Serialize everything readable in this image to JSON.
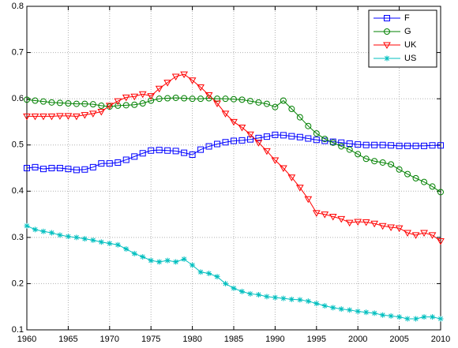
{
  "chart_data": {
    "type": "line",
    "x": [
      1960,
      1961,
      1962,
      1963,
      1964,
      1965,
      1966,
      1967,
      1968,
      1969,
      1970,
      1971,
      1972,
      1973,
      1974,
      1975,
      1976,
      1977,
      1978,
      1979,
      1980,
      1981,
      1982,
      1983,
      1984,
      1985,
      1986,
      1987,
      1988,
      1989,
      1990,
      1991,
      1992,
      1993,
      1994,
      1995,
      1996,
      1997,
      1998,
      1999,
      2000,
      2001,
      2002,
      2003,
      2004,
      2005,
      2006,
      2007,
      2008,
      2009,
      2010
    ],
    "series": [
      {
        "name": "F",
        "color": "#0000ff",
        "marker": "square",
        "values": [
          0.45,
          0.452,
          0.448,
          0.45,
          0.45,
          0.448,
          0.446,
          0.447,
          0.452,
          0.46,
          0.46,
          0.462,
          0.468,
          0.475,
          0.482,
          0.488,
          0.489,
          0.488,
          0.487,
          0.483,
          0.479,
          0.49,
          0.497,
          0.502,
          0.506,
          0.509,
          0.51,
          0.512,
          0.515,
          0.518,
          0.522,
          0.521,
          0.519,
          0.517,
          0.514,
          0.511,
          0.509,
          0.507,
          0.505,
          0.503,
          0.501,
          0.5,
          0.5,
          0.5,
          0.499,
          0.498,
          0.498,
          0.498,
          0.498,
          0.499,
          0.499
        ]
      },
      {
        "name": "G",
        "color": "#008000",
        "marker": "circle",
        "values": [
          0.598,
          0.596,
          0.594,
          0.592,
          0.591,
          0.59,
          0.589,
          0.589,
          0.588,
          0.585,
          0.583,
          0.585,
          0.586,
          0.587,
          0.59,
          0.596,
          0.6,
          0.601,
          0.602,
          0.601,
          0.6,
          0.6,
          0.601,
          0.6,
          0.6,
          0.599,
          0.598,
          0.595,
          0.592,
          0.589,
          0.582,
          0.596,
          0.578,
          0.56,
          0.541,
          0.525,
          0.513,
          0.505,
          0.497,
          0.49,
          0.48,
          0.47,
          0.465,
          0.462,
          0.458,
          0.447,
          0.437,
          0.428,
          0.42,
          0.41,
          0.398
        ]
      },
      {
        "name": "UK",
        "color": "#ff0000",
        "marker": "triangle-down",
        "values": [
          0.562,
          0.562,
          0.562,
          0.562,
          0.563,
          0.563,
          0.562,
          0.565,
          0.568,
          0.572,
          0.585,
          0.595,
          0.603,
          0.605,
          0.61,
          0.606,
          0.622,
          0.635,
          0.648,
          0.653,
          0.64,
          0.625,
          0.608,
          0.59,
          0.568,
          0.55,
          0.538,
          0.523,
          0.505,
          0.487,
          0.467,
          0.45,
          0.43,
          0.408,
          0.383,
          0.353,
          0.35,
          0.345,
          0.34,
          0.332,
          0.334,
          0.333,
          0.33,
          0.325,
          0.322,
          0.32,
          0.31,
          0.305,
          0.31,
          0.305,
          0.292
        ]
      },
      {
        "name": "US",
        "color": "#00bfbf",
        "marker": "star",
        "values": [
          0.325,
          0.317,
          0.313,
          0.31,
          0.305,
          0.302,
          0.3,
          0.297,
          0.294,
          0.29,
          0.287,
          0.284,
          0.275,
          0.265,
          0.258,
          0.25,
          0.247,
          0.25,
          0.247,
          0.253,
          0.24,
          0.225,
          0.222,
          0.215,
          0.2,
          0.19,
          0.183,
          0.178,
          0.176,
          0.172,
          0.17,
          0.168,
          0.166,
          0.165,
          0.162,
          0.157,
          0.152,
          0.148,
          0.145,
          0.143,
          0.14,
          0.138,
          0.136,
          0.132,
          0.13,
          0.128,
          0.124,
          0.124,
          0.128,
          0.128,
          0.124
        ]
      }
    ],
    "xlim": [
      1960,
      2010
    ],
    "xticks": [
      1960,
      1965,
      1970,
      1975,
      1980,
      1985,
      1990,
      1995,
      2000,
      2005,
      2010
    ],
    "ylim": [
      0.1,
      0.8
    ],
    "yticks": [
      0.1,
      0.2,
      0.3,
      0.4,
      0.5,
      0.6,
      0.7,
      0.8
    ],
    "grid": true,
    "legend": "top-right"
  }
}
